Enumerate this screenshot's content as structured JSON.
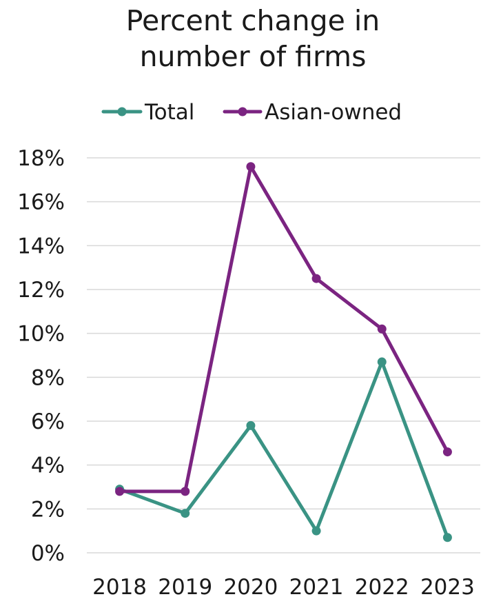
{
  "chart_data": {
    "type": "line",
    "title_lines": [
      "Percent change in",
      "number of firms"
    ],
    "xlabel": "",
    "ylabel": "",
    "categories": [
      "2018",
      "2019",
      "2020",
      "2021",
      "2022",
      "2023"
    ],
    "y_ticks": [
      "0%",
      "2%",
      "4%",
      "6%",
      "8%",
      "10%",
      "12%",
      "14%",
      "16%",
      "18%"
    ],
    "ylim": [
      0,
      18
    ],
    "grid": "horizontal",
    "legend_position": "top",
    "series": [
      {
        "name": "Total",
        "color": "#3a9384",
        "values": [
          2.9,
          1.8,
          5.8,
          1.0,
          8.7,
          0.7
        ]
      },
      {
        "name": "Asian-owned",
        "color": "#7b2481",
        "values": [
          2.8,
          2.8,
          17.6,
          12.5,
          10.2,
          4.6
        ]
      }
    ]
  }
}
